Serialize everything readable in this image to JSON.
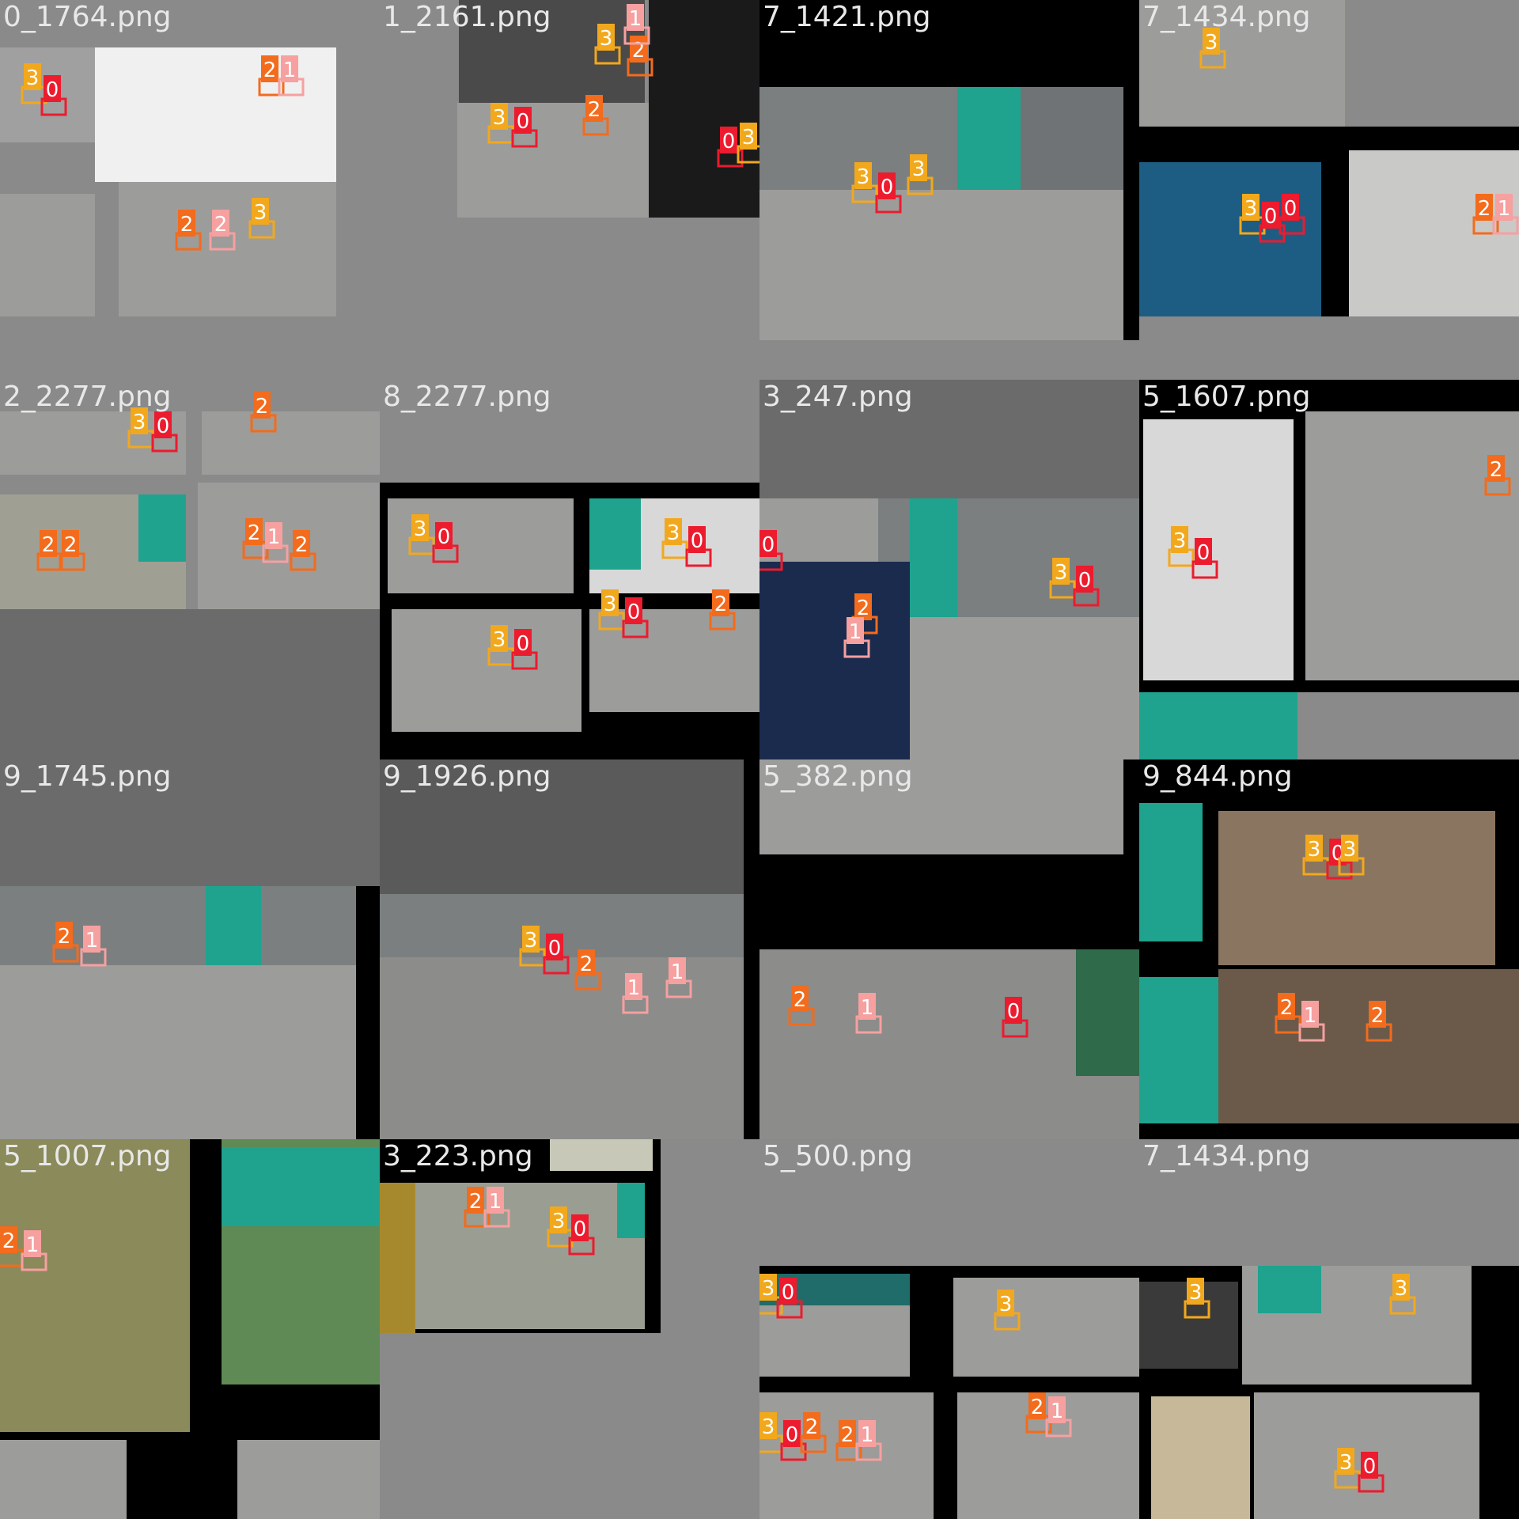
{
  "mosaic": {
    "colors": {
      "gray": "#8a8a8a",
      "black": "#000000",
      "floor": "#9c9c9a",
      "wall": "#6f7375",
      "teal": "#1fa38f",
      "robot": "#222831",
      "box_orange": "#f36b1c",
      "box_yellow": "#f2a81d",
      "box_red": "#ec1b2e",
      "box_pink": "#f6a0a0",
      "label_text": "#ffffff"
    },
    "tiles": [
      {
        "title": "0_1764.png",
        "bg": "#8a8a8a",
        "rects": [
          [
            0,
            60,
            120,
            180,
            "#a0a0a0"
          ],
          [
            120,
            60,
            425,
            230,
            "#f0f0f0"
          ],
          [
            150,
            230,
            425,
            400,
            "#9c9c9a"
          ],
          [
            0,
            245,
            120,
            400,
            "#9c9c9a"
          ],
          [
            120,
            400,
            425,
            480,
            "#8a8a8a"
          ]
        ],
        "labels": [
          [
            30,
            80,
            "3",
            "box_yellow"
          ],
          [
            55,
            95,
            "0",
            "box_red"
          ],
          [
            330,
            70,
            "2",
            "box_orange"
          ],
          [
            355,
            70,
            "1",
            "box_pink"
          ],
          [
            225,
            265,
            "2",
            "box_orange"
          ],
          [
            268,
            265,
            "2",
            "box_pink"
          ],
          [
            318,
            250,
            "3",
            "box_yellow"
          ]
        ]
      },
      {
        "title": "1_2161.png",
        "bg": "#8a8a8a",
        "rects": [
          [
            100,
            0,
            335,
            130,
            "#4a4a4a"
          ],
          [
            98,
            130,
            340,
            275,
            "#9c9c9a"
          ],
          [
            340,
            0,
            480,
            275,
            "#1a1a1a"
          ],
          [
            0,
            275,
            480,
            480,
            "#8a8a8a"
          ]
        ],
        "labels": [
          [
            275,
            30,
            "3",
            "box_yellow"
          ],
          [
            316,
            45,
            "2",
            "box_orange"
          ],
          [
            312,
            5,
            "1",
            "box_pink"
          ],
          [
            140,
            130,
            "3",
            "box_yellow"
          ],
          [
            170,
            135,
            "0",
            "box_red"
          ],
          [
            260,
            120,
            "2",
            "box_orange"
          ],
          [
            430,
            160,
            "0",
            "box_red"
          ],
          [
            455,
            155,
            "3",
            "box_yellow"
          ]
        ]
      },
      {
        "title": "7_1421.png",
        "bg": "#000000",
        "rects": [
          [
            0,
            110,
            460,
            430,
            "#9c9c9a"
          ],
          [
            250,
            110,
            330,
            240,
            "#1fa38f"
          ],
          [
            330,
            110,
            460,
            240,
            "#6f7375"
          ],
          [
            0,
            110,
            250,
            240,
            "#7b7f80"
          ],
          [
            460,
            0,
            480,
            480,
            "#000000"
          ],
          [
            0,
            430,
            480,
            480,
            "#8a8a8a"
          ]
        ],
        "labels": [
          [
            120,
            205,
            "3",
            "box_yellow"
          ],
          [
            150,
            218,
            "0",
            "box_red"
          ],
          [
            190,
            195,
            "3",
            "box_yellow"
          ]
        ]
      },
      {
        "title": "7_1434.png",
        "bg": "#000000",
        "rects": [
          [
            0,
            0,
            260,
            160,
            "#9c9c9a"
          ],
          [
            260,
            0,
            480,
            160,
            "#8a8a8a"
          ],
          [
            0,
            205,
            230,
            400,
            "#1d5d84"
          ],
          [
            265,
            190,
            480,
            400,
            "#c9c9c7"
          ],
          [
            0,
            400,
            480,
            480,
            "#8a8a8a"
          ]
        ],
        "labels": [
          [
            80,
            35,
            "3",
            "box_yellow"
          ],
          [
            130,
            245,
            "3",
            "box_yellow"
          ],
          [
            155,
            255,
            "0",
            "box_red"
          ],
          [
            180,
            245,
            "0",
            "box_red"
          ],
          [
            425,
            245,
            "2",
            "box_orange"
          ],
          [
            450,
            245,
            "1",
            "box_pink"
          ]
        ]
      },
      {
        "title": "2_2277.png",
        "bg": "#8a8a8a",
        "rects": [
          [
            0,
            40,
            235,
            120,
            "#9c9c9a"
          ],
          [
            255,
            40,
            480,
            120,
            "#9c9c9a"
          ],
          [
            0,
            145,
            235,
            290,
            "#a09f94"
          ],
          [
            175,
            145,
            235,
            230,
            "#1fa38f"
          ],
          [
            250,
            130,
            480,
            290,
            "#9c9c9a"
          ],
          [
            0,
            290,
            480,
            480,
            "#6b6b6b"
          ]
        ],
        "labels": [
          [
            165,
            35,
            "3",
            "box_yellow"
          ],
          [
            195,
            40,
            "0",
            "box_red"
          ],
          [
            320,
            15,
            "2",
            "box_orange"
          ],
          [
            50,
            190,
            "2",
            "box_orange"
          ],
          [
            78,
            190,
            "2",
            "box_orange"
          ],
          [
            310,
            175,
            "2",
            "box_orange"
          ],
          [
            335,
            180,
            "1",
            "box_pink"
          ],
          [
            370,
            190,
            "2",
            "box_orange"
          ]
        ]
      },
      {
        "title": "8_2277.png",
        "bg": "#8a8a8a",
        "rects": [
          [
            0,
            130,
            480,
            480,
            "#000000"
          ],
          [
            10,
            150,
            245,
            270,
            "#9c9c9a"
          ],
          [
            265,
            150,
            480,
            270,
            "#d8d8d8"
          ],
          [
            265,
            150,
            330,
            240,
            "#1fa38f"
          ],
          [
            15,
            290,
            255,
            445,
            "#9c9c9a"
          ],
          [
            265,
            290,
            480,
            420,
            "#9c9c9a"
          ]
        ],
        "labels": [
          [
            40,
            170,
            "3",
            "box_yellow"
          ],
          [
            70,
            180,
            "0",
            "box_red"
          ],
          [
            360,
            175,
            "3",
            "box_yellow"
          ],
          [
            390,
            185,
            "0",
            "box_red"
          ],
          [
            140,
            310,
            "3",
            "box_yellow"
          ],
          [
            170,
            315,
            "0",
            "box_red"
          ],
          [
            280,
            265,
            "3",
            "box_yellow"
          ],
          [
            310,
            275,
            "0",
            "box_red"
          ],
          [
            420,
            265,
            "2",
            "box_orange"
          ]
        ]
      },
      {
        "title": "3_247.png",
        "bg": "#6b6b6b",
        "rects": [
          [
            0,
            150,
            480,
            480,
            "#7b7f80"
          ],
          [
            0,
            150,
            150,
            480,
            "#9c9c9a"
          ],
          [
            190,
            150,
            250,
            300,
            "#1fa38f"
          ],
          [
            150,
            300,
            480,
            480,
            "#9c9c9a"
          ],
          [
            0,
            230,
            190,
            480,
            "#1b2b4d"
          ]
        ],
        "labels": [
          [
            0,
            190,
            "0",
            "box_red"
          ],
          [
            120,
            270,
            "2",
            "box_orange"
          ],
          [
            110,
            300,
            "1",
            "box_pink"
          ],
          [
            370,
            225,
            "3",
            "box_yellow"
          ],
          [
            400,
            235,
            "0",
            "box_red"
          ]
        ]
      },
      {
        "title": "5_1607.png",
        "bg": "#000000",
        "rects": [
          [
            5,
            50,
            195,
            380,
            "#d8d8d8"
          ],
          [
            210,
            40,
            480,
            380,
            "#9c9c9a"
          ],
          [
            0,
            395,
            200,
            480,
            "#1fa38f"
          ],
          [
            200,
            395,
            480,
            480,
            "#8a8a8a"
          ]
        ],
        "labels": [
          [
            40,
            185,
            "3",
            "box_yellow"
          ],
          [
            70,
            200,
            "0",
            "box_red"
          ],
          [
            440,
            95,
            "2",
            "box_orange"
          ]
        ]
      },
      {
        "title": "9_1745.png",
        "bg": "#6b6b6b",
        "rects": [
          [
            0,
            160,
            450,
            480,
            "#8a8a8a"
          ],
          [
            0,
            160,
            450,
            260,
            "#7b7f80"
          ],
          [
            260,
            160,
            330,
            260,
            "#1fa38f"
          ],
          [
            0,
            260,
            450,
            480,
            "#9c9c9a"
          ],
          [
            450,
            160,
            480,
            480,
            "#000000"
          ]
        ],
        "labels": [
          [
            70,
            205,
            "2",
            "box_orange"
          ],
          [
            105,
            210,
            "1",
            "box_pink"
          ]
        ]
      },
      {
        "title": "9_1926.png",
        "bg": "#5a5a5a",
        "rects": [
          [
            0,
            170,
            460,
            480,
            "#7b7f80"
          ],
          [
            0,
            250,
            460,
            480,
            "#8c8c8a"
          ],
          [
            460,
            0,
            480,
            480,
            "#000000"
          ]
        ],
        "labels": [
          [
            180,
            210,
            "3",
            "box_yellow"
          ],
          [
            210,
            220,
            "0",
            "box_red"
          ],
          [
            250,
            240,
            "2",
            "box_orange"
          ],
          [
            310,
            270,
            "1",
            "box_pink"
          ],
          [
            365,
            250,
            "1",
            "box_pink"
          ]
        ]
      },
      {
        "title": "5_382.png",
        "bg": "#000000",
        "rects": [
          [
            0,
            0,
            460,
            120,
            "#9c9c9a"
          ],
          [
            0,
            240,
            480,
            480,
            "#8c8c8a"
          ],
          [
            400,
            240,
            480,
            400,
            "#2f6a4a"
          ]
        ],
        "labels": [
          [
            40,
            285,
            "2",
            "box_orange"
          ],
          [
            125,
            295,
            "1",
            "box_pink"
          ],
          [
            310,
            300,
            "0",
            "box_red"
          ]
        ]
      },
      {
        "title": "9_844.png",
        "bg": "#000000",
        "rects": [
          [
            0,
            55,
            80,
            230,
            "#1fa38f"
          ],
          [
            100,
            65,
            450,
            260,
            "#8a7560"
          ],
          [
            0,
            275,
            100,
            460,
            "#1fa38f"
          ],
          [
            100,
            265,
            480,
            460,
            "#6b5a4a"
          ]
        ],
        "labels": [
          [
            210,
            95,
            "3",
            "box_yellow"
          ],
          [
            240,
            100,
            "0",
            "box_red"
          ],
          [
            255,
            95,
            "3",
            "box_yellow"
          ],
          [
            175,
            295,
            "2",
            "box_orange"
          ],
          [
            205,
            305,
            "1",
            "box_pink"
          ],
          [
            290,
            305,
            "2",
            "box_orange"
          ]
        ]
      },
      {
        "title": "5_1007.png",
        "bg": "#000000",
        "rects": [
          [
            0,
            0,
            240,
            370,
            "#8a8a5a"
          ],
          [
            280,
            0,
            480,
            310,
            "#5f8a55"
          ],
          [
            280,
            10,
            480,
            110,
            "#1fa38f"
          ],
          [
            0,
            380,
            160,
            480,
            "#9c9c9a"
          ],
          [
            300,
            380,
            480,
            480,
            "#9c9c9a"
          ]
        ],
        "labels": [
          [
            0,
            110,
            "2",
            "box_orange"
          ],
          [
            30,
            115,
            "1",
            "box_pink"
          ]
        ]
      },
      {
        "title": "3_223.png",
        "bg": "#8a8a8a",
        "rects": [
          [
            0,
            0,
            355,
            245,
            "#000000"
          ],
          [
            0,
            55,
            45,
            245,
            "#a7892d"
          ],
          [
            45,
            55,
            335,
            240,
            "#9a9e92"
          ],
          [
            300,
            55,
            335,
            125,
            "#1fa38f"
          ],
          [
            215,
            0,
            345,
            40,
            "#c8c8b8"
          ]
        ],
        "labels": [
          [
            110,
            60,
            "2",
            "box_orange"
          ],
          [
            135,
            60,
            "1",
            "box_pink"
          ],
          [
            215,
            85,
            "3",
            "box_yellow"
          ],
          [
            242,
            95,
            "0",
            "box_red"
          ]
        ]
      },
      {
        "title": "5_500.png",
        "bg": "#8a8a8a",
        "rects": [
          [
            0,
            160,
            480,
            480,
            "#000000"
          ],
          [
            0,
            170,
            190,
            300,
            "#9c9c9a"
          ],
          [
            0,
            170,
            190,
            210,
            "#1f6c6a"
          ],
          [
            245,
            175,
            480,
            300,
            "#9c9c9a"
          ],
          [
            0,
            320,
            220,
            480,
            "#9c9c9a"
          ],
          [
            250,
            320,
            480,
            480,
            "#9c9c9a"
          ]
        ],
        "labels": [
          [
            0,
            170,
            "3",
            "box_yellow"
          ],
          [
            25,
            175,
            "0",
            "box_red"
          ],
          [
            300,
            190,
            "3",
            "box_yellow"
          ],
          [
            0,
            345,
            "3",
            "box_yellow"
          ],
          [
            30,
            355,
            "0",
            "box_red"
          ],
          [
            55,
            345,
            "2",
            "box_orange"
          ],
          [
            100,
            355,
            "2",
            "box_orange"
          ],
          [
            125,
            355,
            "1",
            "box_pink"
          ],
          [
            340,
            320,
            "2",
            "box_orange"
          ],
          [
            365,
            325,
            "1",
            "box_pink"
          ]
        ]
      },
      {
        "title": "7_1434.png",
        "bg": "#8a8a8a",
        "rects": [
          [
            0,
            160,
            480,
            480,
            "#000000"
          ],
          [
            0,
            180,
            125,
            290,
            "#3a3a3a"
          ],
          [
            130,
            160,
            420,
            310,
            "#9c9c9a"
          ],
          [
            150,
            160,
            230,
            220,
            "#1fa38f"
          ],
          [
            15,
            325,
            140,
            480,
            "#c8b89a"
          ],
          [
            145,
            320,
            430,
            480,
            "#9c9c9a"
          ]
        ],
        "labels": [
          [
            60,
            175,
            "3",
            "box_yellow"
          ],
          [
            320,
            170,
            "3",
            "box_yellow"
          ],
          [
            250,
            390,
            "3",
            "box_yellow"
          ],
          [
            280,
            395,
            "0",
            "box_red"
          ]
        ]
      }
    ]
  }
}
